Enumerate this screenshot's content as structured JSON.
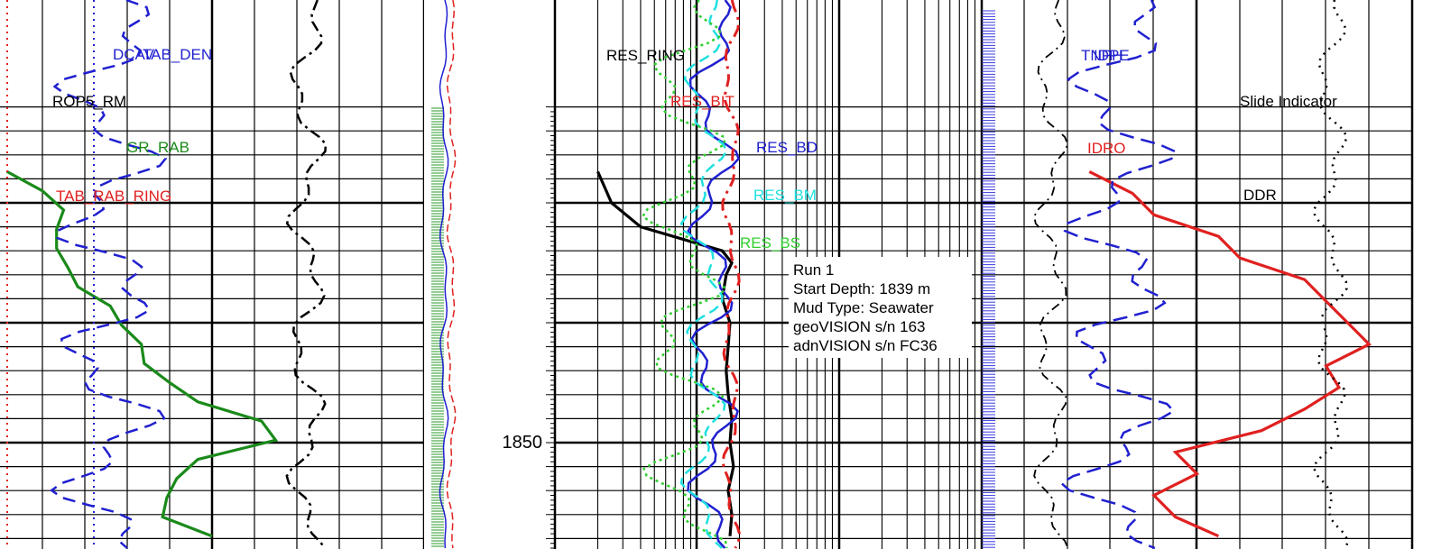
{
  "chart_data": {
    "type": "line",
    "title": "",
    "depth_axis": {
      "unit": "m",
      "labels": [
        {
          "depth": 1850,
          "text": "1850"
        }
      ]
    },
    "tracks": [
      {
        "name": "track-1",
        "curve_labels": [
          {
            "text": "DCAV",
            "color": "#2020d0"
          },
          {
            "text": "TAB_DEN",
            "color": "#2020d0"
          },
          {
            "text": "ROP5_RM",
            "color": "#000000"
          },
          {
            "text": "GR_RAB",
            "color": "#1a8a1a"
          },
          {
            "text": "TAB_RAB_RING",
            "color": "#e02020"
          }
        ]
      },
      {
        "name": "track-3-resistivity",
        "curve_labels": [
          {
            "text": "RES_RING",
            "color": "#000000"
          },
          {
            "text": "RES_BIT",
            "color": "#e02020"
          },
          {
            "text": "RES_BD",
            "color": "#2020d0"
          },
          {
            "text": "RES_BM",
            "color": "#20e0e0"
          },
          {
            "text": "RES_BS",
            "color": "#30d030"
          }
        ]
      },
      {
        "name": "track-4",
        "curve_labels": [
          {
            "text": "TNPH",
            "color": "#2020d0"
          },
          {
            "text": "IDPE",
            "color": "#2020d0"
          },
          {
            "text": "IDRO",
            "color": "#e02020"
          },
          {
            "text": "Slide Indicator",
            "color": "#000000"
          },
          {
            "text": "DDR",
            "color": "#000000"
          }
        ]
      }
    ],
    "series": [
      {
        "name": "GR_RAB",
        "color": "#1a8a1a",
        "depth": [
          1838.7,
          1839.5,
          1840.3,
          1841.1,
          1841.9,
          1842.7,
          1843.5,
          1844.3,
          1845.1,
          1845.9,
          1846.7,
          1847.5,
          1848.3,
          1849.1,
          1849.9,
          1850.7,
          1851.5,
          1852.3,
          1853.1,
          1853.9
        ],
        "values": [
          5,
          30,
          45,
          40,
          40,
          48,
          55,
          78,
          86,
          100,
          102,
          120,
          140,
          185,
          195,
          140,
          125,
          118,
          115,
          150
        ]
      },
      {
        "name": "RES_RING",
        "color": "#000000",
        "depth": [
          1838.7,
          1840.0,
          1841.0,
          1842.0,
          1842.5,
          1843.0,
          1844.0,
          1845.0,
          1846.0,
          1847.0,
          1848.0,
          1849.0,
          1850.0,
          1851.0,
          1852.0,
          1853.0,
          1853.9
        ],
        "values": [
          0.4,
          0.5,
          0.8,
          3,
          3.5,
          3.2,
          3,
          3.4,
          3.3,
          3.2,
          3.3,
          3.5,
          3.4,
          3.6,
          3.3,
          3.5,
          3.4
        ]
      },
      {
        "name": "IDRO",
        "color": "#e02020",
        "depth": [
          1838.7,
          1839.6,
          1840.5,
          1841.4,
          1842.3,
          1843.2,
          1844.1,
          1845.0,
          1845.9,
          1846.8,
          1847.7,
          1848.6,
          1849.5,
          1850.4,
          1851.3,
          1852.2,
          1853.1,
          1853.9
        ],
        "values": [
          1.9,
          2.0,
          2.05,
          2.2,
          2.25,
          2.4,
          2.45,
          2.5,
          2.55,
          2.45,
          2.48,
          2.4,
          2.3,
          2.1,
          2.15,
          2.05,
          2.1,
          2.2
        ]
      }
    ],
    "annotation": {
      "lines": [
        "Run 1",
        "Start Depth: 1839 m",
        "Mud Type: Seawater",
        "geoVISION s/n 163",
        "adnVISION s/n FC36"
      ]
    }
  }
}
